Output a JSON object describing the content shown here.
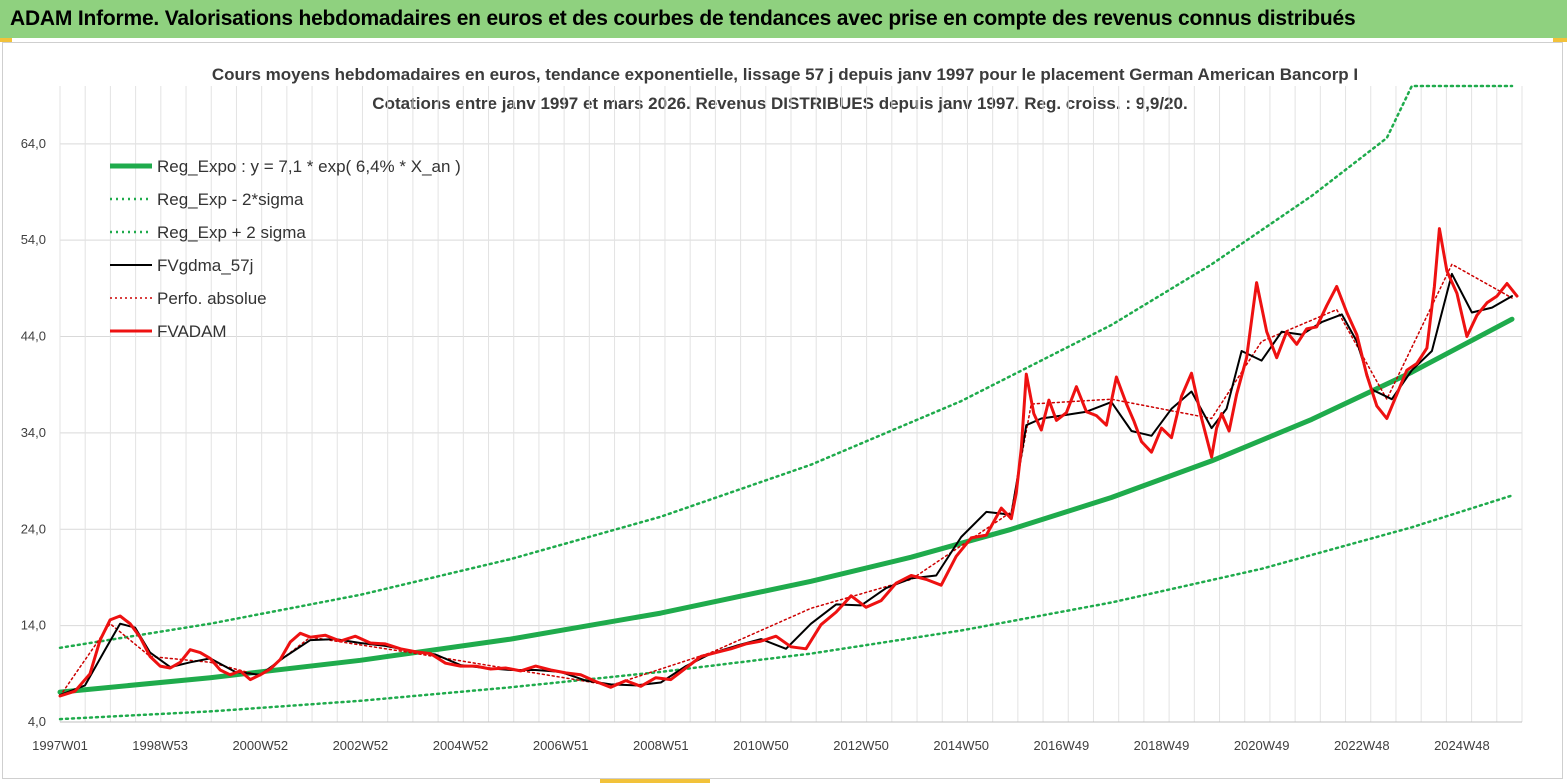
{
  "banner": {
    "title": "ADAM Informe. Valorisations hebdomadaires en euros et des courbes de tendances avec prise en compte des revenus connus distribués"
  },
  "colors": {
    "banner": "#8fd17f",
    "reg": "#1fab4c",
    "fvgdma": "#000000",
    "fvadam": "#ee1111",
    "perfo": "#cc0000"
  },
  "chart_data": {
    "type": "line",
    "title": "Cours moyens hebdomadaires en euros, tendance exponentielle, lissage 57 j depuis janv 1997  pour le placement German American Bancorp  I",
    "subtitle": "Cotations entre janv 1997 et mars 2026. Revenus DISTRIBUES depuis janv 1997. Reg. croiss. : 9,9/20.",
    "xlabel": "",
    "ylabel": "",
    "x_tick_labels": [
      "1997W01",
      "1998W53",
      "2000W52",
      "2002W52",
      "2004W52",
      "2006W51",
      "2008W51",
      "2010W50",
      "2012W50",
      "2014W50",
      "2016W49",
      "2018W49",
      "2020W49",
      "2022W48",
      "2024W48"
    ],
    "y_tick_labels": [
      "4,0",
      "14,0",
      "24,0",
      "34,0",
      "44,0",
      "54,0",
      "64,0"
    ],
    "ylim": [
      4,
      70
    ],
    "xlim": [
      1997.0,
      2026.2
    ],
    "grid": true,
    "legend_position": "top-left",
    "series": [
      {
        "name": "Reg_Expo : y = 7,1 * exp( 6,4% *  X_an )",
        "style": "solid-thick",
        "color": "#1fab4c",
        "x": [
          1997,
          2000,
          2003,
          2006,
          2009,
          2012,
          2014,
          2016,
          2018,
          2020,
          2022,
          2024,
          2026
        ],
        "values": [
          7.1,
          8.6,
          10.4,
          12.6,
          15.3,
          18.6,
          21.1,
          24.0,
          27.3,
          31.1,
          35.4,
          40.3,
          45.8
        ]
      },
      {
        "name": "Reg_Exp - 2*sigma",
        "style": "dotted",
        "color": "#1fab4c",
        "x": [
          1997,
          2000,
          2003,
          2006,
          2009,
          2012,
          2015,
          2018,
          2021,
          2024,
          2026
        ],
        "values": [
          4.3,
          5.1,
          6.2,
          7.6,
          9.2,
          11.1,
          13.5,
          16.4,
          19.9,
          24.2,
          27.5
        ]
      },
      {
        "name": "Reg_Exp + 2 sigma",
        "style": "dotted",
        "color": "#1fab4c",
        "x": [
          1997,
          2000,
          2003,
          2006,
          2009,
          2012,
          2015,
          2018,
          2020,
          2022,
          2023.5,
          2024,
          2026
        ],
        "values": [
          11.7,
          14.2,
          17.2,
          20.9,
          25.3,
          30.7,
          37.3,
          45.2,
          51.5,
          58.6,
          64.6,
          70,
          70
        ]
      },
      {
        "name": "FVgdma_57j",
        "style": "solid",
        "color": "#000000",
        "x": [
          1997.0,
          1997.5,
          1997.9,
          1998.2,
          1998.5,
          1998.8,
          1999.2,
          1999.6,
          2000.0,
          2000.5,
          2001.0,
          2001.5,
          2002.0,
          2002.5,
          2003.0,
          2003.5,
          2004.0,
          2004.5,
          2005.0,
          2005.5,
          2006.0,
          2006.5,
          2007.0,
          2007.5,
          2008.0,
          2008.5,
          2009.0,
          2009.5,
          2010.0,
          2010.5,
          2011.0,
          2011.5,
          2012.0,
          2012.5,
          2013.0,
          2013.5,
          2014.0,
          2014.5,
          2015.0,
          2015.5,
          2016.0,
          2016.3,
          2016.6,
          2017.0,
          2017.5,
          2018.0,
          2018.4,
          2018.8,
          2019.2,
          2019.6,
          2020.0,
          2020.3,
          2020.6,
          2021.0,
          2021.4,
          2021.8,
          2022.2,
          2022.6,
          2022.9,
          2023.2,
          2023.6,
          2024.0,
          2024.4,
          2024.8,
          2025.2,
          2025.6,
          2026.0
        ],
        "values": [
          6.8,
          7.8,
          11.5,
          14.2,
          13.8,
          11.2,
          9.7,
          10.2,
          10.6,
          9.2,
          8.9,
          10.8,
          12.5,
          12.6,
          12.2,
          11.9,
          11.4,
          11.0,
          9.9,
          9.6,
          9.4,
          9.4,
          9.2,
          8.3,
          7.9,
          7.8,
          8.1,
          9.8,
          11.1,
          11.9,
          12.6,
          11.6,
          14.2,
          16.2,
          16.1,
          17.9,
          18.9,
          19.2,
          23.2,
          25.8,
          25.5,
          34.8,
          35.5,
          35.8,
          36.2,
          37.2,
          34.2,
          33.7,
          36.5,
          38.3,
          34.5,
          36.5,
          42.5,
          41.5,
          44.5,
          44.2,
          45.5,
          46.3,
          43.5,
          38.5,
          37.5,
          40.5,
          42.5,
          50.5,
          46.5,
          47.0,
          48.2
        ]
      },
      {
        "name": "Perfo. absolue",
        "style": "dotted",
        "color": "#cc0000",
        "x": [
          1997.0,
          1998.0,
          1998.8,
          2000.0,
          2001.0,
          2002.0,
          2004.0,
          2006.0,
          2008.0,
          2010.0,
          2012.0,
          2014.0,
          2016.0,
          2016.4,
          2018.0,
          2020.0,
          2021.0,
          2022.5,
          2023.5,
          2024.8,
          2026.0
        ],
        "values": [
          6.7,
          14.2,
          10.8,
          10.2,
          8.8,
          12.8,
          11.2,
          9.5,
          7.8,
          11.2,
          15.8,
          18.8,
          25.8,
          37.0,
          37.5,
          35.5,
          43.5,
          46.8,
          37.5,
          51.5,
          48.0
        ]
      },
      {
        "name": "FVADAM",
        "style": "solid-thick",
        "color": "#ee1111",
        "x": [
          1997.0,
          1997.3,
          1997.6,
          1997.8,
          1998.0,
          1998.2,
          1998.4,
          1998.6,
          1998.8,
          1999.0,
          1999.2,
          1999.4,
          1999.6,
          1999.8,
          2000.0,
          2000.2,
          2000.4,
          2000.6,
          2000.8,
          2001.0,
          2001.2,
          2001.4,
          2001.6,
          2001.8,
          2002.0,
          2002.3,
          2002.6,
          2002.9,
          2003.2,
          2003.5,
          2003.8,
          2004.1,
          2004.4,
          2004.7,
          2005.0,
          2005.3,
          2005.6,
          2005.9,
          2006.2,
          2006.5,
          2006.8,
          2007.1,
          2007.4,
          2007.7,
          2008.0,
          2008.3,
          2008.6,
          2008.9,
          2009.2,
          2009.5,
          2009.8,
          2010.1,
          2010.4,
          2010.7,
          2011.0,
          2011.3,
          2011.6,
          2011.9,
          2012.2,
          2012.5,
          2012.8,
          2013.1,
          2013.4,
          2013.7,
          2014.0,
          2014.3,
          2014.6,
          2014.9,
          2015.2,
          2015.5,
          2015.8,
          2016.0,
          2016.1,
          2016.2,
          2016.3,
          2016.45,
          2016.6,
          2016.75,
          2016.9,
          2017.1,
          2017.3,
          2017.5,
          2017.7,
          2017.9,
          2018.1,
          2018.3,
          2018.45,
          2018.6,
          2018.8,
          2019.0,
          2019.2,
          2019.4,
          2019.6,
          2019.8,
          2020.0,
          2020.1,
          2020.2,
          2020.35,
          2020.5,
          2020.7,
          2020.9,
          2021.1,
          2021.3,
          2021.5,
          2021.7,
          2021.9,
          2022.1,
          2022.3,
          2022.5,
          2022.7,
          2022.9,
          2023.1,
          2023.3,
          2023.5,
          2023.7,
          2023.9,
          2024.1,
          2024.3,
          2024.45,
          2024.55,
          2024.7,
          2024.9,
          2025.1,
          2025.3,
          2025.5,
          2025.7,
          2025.9,
          2026.1
        ],
        "values": [
          6.7,
          7.2,
          9.0,
          12.5,
          14.6,
          15.0,
          14.2,
          12.8,
          10.8,
          9.8,
          9.6,
          10.2,
          11.5,
          11.2,
          10.6,
          9.4,
          8.9,
          9.3,
          8.4,
          8.9,
          9.5,
          10.5,
          12.3,
          13.2,
          12.8,
          13.0,
          12.4,
          12.9,
          12.2,
          12.1,
          11.6,
          11.3,
          11.1,
          10.1,
          9.8,
          9.8,
          9.5,
          9.6,
          9.3,
          9.8,
          9.4,
          9.1,
          8.9,
          8.2,
          7.6,
          8.3,
          7.7,
          8.6,
          8.4,
          9.6,
          10.8,
          11.2,
          11.6,
          12.1,
          12.4,
          12.9,
          11.8,
          11.6,
          14.1,
          15.4,
          17.1,
          15.9,
          16.6,
          18.4,
          19.2,
          18.8,
          18.2,
          21.2,
          23.1,
          23.4,
          26.2,
          25.1,
          27.8,
          32.4,
          40.1,
          36.0,
          34.3,
          37.4,
          35.3,
          36.1,
          38.8,
          36.2,
          35.8,
          34.8,
          39.8,
          37.0,
          35.2,
          33.1,
          32.0,
          34.5,
          33.5,
          37.8,
          40.2,
          35.5,
          31.5,
          34.5,
          36.0,
          34.2,
          38.0,
          41.8,
          49.6,
          44.5,
          41.8,
          44.5,
          43.2,
          44.8,
          45.0,
          47.2,
          49.2,
          46.5,
          44.2,
          40.0,
          36.8,
          35.5,
          38.0,
          40.5,
          41.2,
          42.8,
          49.2,
          55.2,
          50.8,
          48.5,
          44.0,
          46.2,
          47.5,
          48.2,
          49.5,
          48.2
        ]
      }
    ]
  }
}
